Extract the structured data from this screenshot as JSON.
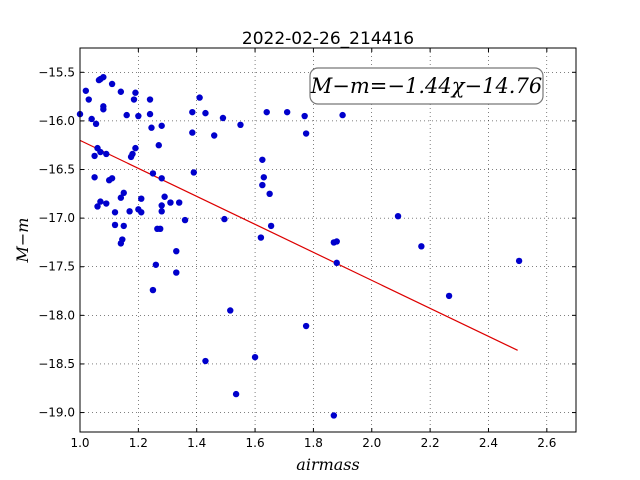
{
  "chart_data": {
    "type": "scatter",
    "title": "2022-02-26_214416",
    "xlabel": "airmass",
    "ylabel": "M−m",
    "xlim": [
      1.0,
      2.7
    ],
    "ylim": [
      -19.2,
      -15.25
    ],
    "y_inverted": true,
    "grid": true,
    "x_ticks": [
      1.0,
      1.2,
      1.4,
      1.6,
      1.8,
      2.0,
      2.2,
      2.4,
      2.6
    ],
    "x_tick_labels": [
      "1.0",
      "1.2",
      "1.4",
      "1.6",
      "1.8",
      "2.0",
      "2.2",
      "2.4",
      "2.6"
    ],
    "y_ticks": [
      -15.5,
      -16.0,
      -16.5,
      -17.0,
      -17.5,
      -18.0,
      -18.5,
      -19.0
    ],
    "y_tick_labels": [
      "−15.5",
      "−16.0",
      "−16.5",
      "−17.0",
      "−17.5",
      "−18.0",
      "−18.5",
      "−19.0"
    ],
    "annotation": "M−m=−1.44χ−14.76",
    "colors": {
      "points": "#0000cc",
      "fit": "#dd0000"
    },
    "fit_line": {
      "slope": -1.44,
      "intercept": -14.76,
      "x_range": [
        1.0,
        2.5
      ]
    },
    "points": [
      [
        1.0,
        -15.93
      ],
      [
        1.02,
        -15.69
      ],
      [
        1.03,
        -15.78
      ],
      [
        1.04,
        -15.98
      ],
      [
        1.05,
        -16.36
      ],
      [
        1.05,
        -16.58
      ],
      [
        1.055,
        -16.03
      ],
      [
        1.06,
        -16.28
      ],
      [
        1.06,
        -16.88
      ],
      [
        1.065,
        -15.58
      ],
      [
        1.07,
        -15.57
      ],
      [
        1.07,
        -16.32
      ],
      [
        1.07,
        -16.83
      ],
      [
        1.08,
        -15.55
      ],
      [
        1.08,
        -15.88
      ],
      [
        1.08,
        -15.85
      ],
      [
        1.09,
        -16.34
      ],
      [
        1.09,
        -16.85
      ],
      [
        1.1,
        -16.61
      ],
      [
        1.11,
        -15.62
      ],
      [
        1.11,
        -16.59
      ],
      [
        1.12,
        -16.94
      ],
      [
        1.12,
        -17.07
      ],
      [
        1.14,
        -15.7
      ],
      [
        1.14,
        -16.79
      ],
      [
        1.14,
        -17.26
      ],
      [
        1.145,
        -17.22
      ],
      [
        1.15,
        -17.08
      ],
      [
        1.15,
        -16.74
      ],
      [
        1.16,
        -15.94
      ],
      [
        1.17,
        -16.93
      ],
      [
        1.175,
        -16.37
      ],
      [
        1.18,
        -16.34
      ],
      [
        1.185,
        -15.78
      ],
      [
        1.19,
        -15.71
      ],
      [
        1.19,
        -16.28
      ],
      [
        1.2,
        -15.95
      ],
      [
        1.2,
        -16.91
      ],
      [
        1.21,
        -16.8
      ],
      [
        1.21,
        -16.94
      ],
      [
        1.24,
        -15.78
      ],
      [
        1.24,
        -15.93
      ],
      [
        1.245,
        -16.07
      ],
      [
        1.25,
        -16.54
      ],
      [
        1.25,
        -17.74
      ],
      [
        1.26,
        -17.48
      ],
      [
        1.265,
        -17.11
      ],
      [
        1.27,
        -16.25
      ],
      [
        1.275,
        -17.11
      ],
      [
        1.28,
        -16.05
      ],
      [
        1.28,
        -16.87
      ],
      [
        1.28,
        -16.59
      ],
      [
        1.28,
        -16.93
      ],
      [
        1.29,
        -16.78
      ],
      [
        1.31,
        -16.84
      ],
      [
        1.33,
        -17.34
      ],
      [
        1.33,
        -17.56
      ],
      [
        1.34,
        -16.84
      ],
      [
        1.36,
        -17.02
      ],
      [
        1.385,
        -15.91
      ],
      [
        1.385,
        -16.12
      ],
      [
        1.39,
        -16.53
      ],
      [
        1.41,
        -15.76
      ],
      [
        1.43,
        -15.92
      ],
      [
        1.43,
        -18.47
      ],
      [
        1.46,
        -16.15
      ],
      [
        1.49,
        -15.97
      ],
      [
        1.495,
        -17.01
      ],
      [
        1.515,
        -17.95
      ],
      [
        1.535,
        -18.81
      ],
      [
        1.55,
        -16.04
      ],
      [
        1.6,
        -18.43
      ],
      [
        1.62,
        -17.2
      ],
      [
        1.625,
        -16.4
      ],
      [
        1.625,
        -16.66
      ],
      [
        1.63,
        -16.58
      ],
      [
        1.64,
        -15.91
      ],
      [
        1.65,
        -16.75
      ],
      [
        1.655,
        -17.08
      ],
      [
        1.71,
        -15.91
      ],
      [
        1.77,
        -15.95
      ],
      [
        1.775,
        -16.13
      ],
      [
        1.775,
        -18.11
      ],
      [
        1.87,
        -19.03
      ],
      [
        1.87,
        -17.25
      ],
      [
        1.88,
        -17.24
      ],
      [
        1.88,
        -17.46
      ],
      [
        1.9,
        -15.94
      ],
      [
        2.09,
        -16.98
      ],
      [
        2.17,
        -17.29
      ],
      [
        2.265,
        -17.8
      ],
      [
        2.505,
        -17.44
      ]
    ]
  }
}
